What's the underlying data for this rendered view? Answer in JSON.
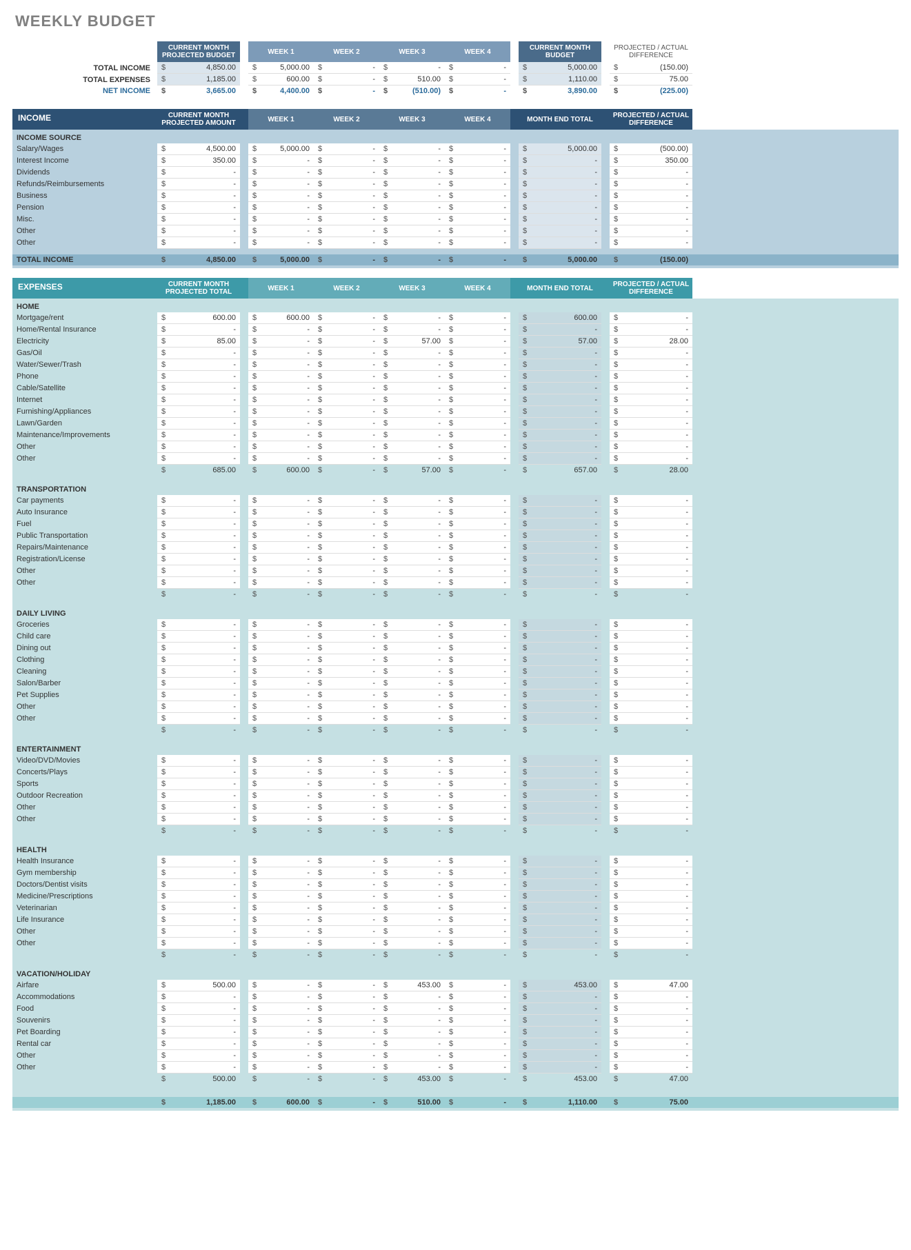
{
  "title": "WEEKLY BUDGET",
  "columns": {
    "projected": "CURRENT MONTH PROJECTED BUDGET",
    "projected_amount": "CURRENT MONTH PROJECTED AMOUNT",
    "projected_total": "CURRENT MONTH PROJECTED TOTAL",
    "week1": "WEEK 1",
    "week2": "WEEK 2",
    "week3": "WEEK 3",
    "week4": "WEEK 4",
    "month_budget": "CURRENT MONTH BUDGET",
    "month_end": "MONTH END TOTAL",
    "diff": "PROJECTED / ACTUAL DIFFERENCE"
  },
  "summary": {
    "labels": {
      "total_income": "TOTAL INCOME",
      "total_expenses": "TOTAL EXPENSES",
      "net_income": "NET INCOME"
    },
    "total_income": {
      "projected": "4,850.00",
      "w1": "5,000.00",
      "w2": "-",
      "w3": "-",
      "w4": "-",
      "month": "5,000.00",
      "diff": "(150.00)"
    },
    "total_expenses": {
      "projected": "1,185.00",
      "w1": "600.00",
      "w2": "-",
      "w3": "510.00",
      "w4": "-",
      "month": "1,110.00",
      "diff": "75.00"
    },
    "net_income": {
      "projected": "3,665.00",
      "w1": "4,400.00",
      "w2": "-",
      "w3": "(510.00)",
      "w4": "-",
      "month": "3,890.00",
      "diff": "(225.00)"
    }
  },
  "income": {
    "title": "INCOME",
    "source_label": "INCOME SOURCE",
    "rows": [
      {
        "label": "Salary/Wages",
        "projected": "4,500.00",
        "w1": "5,000.00",
        "w2": "-",
        "w3": "-",
        "w4": "-",
        "month": "5,000.00",
        "diff": "(500.00)"
      },
      {
        "label": "Interest Income",
        "projected": "350.00",
        "w1": "-",
        "w2": "-",
        "w3": "-",
        "w4": "-",
        "month": "-",
        "diff": "350.00"
      },
      {
        "label": "Dividends",
        "projected": "-",
        "w1": "-",
        "w2": "-",
        "w3": "-",
        "w4": "-",
        "month": "-",
        "diff": "-"
      },
      {
        "label": "Refunds/Reimbursements",
        "projected": "-",
        "w1": "-",
        "w2": "-",
        "w3": "-",
        "w4": "-",
        "month": "-",
        "diff": "-"
      },
      {
        "label": "Business",
        "projected": "-",
        "w1": "-",
        "w2": "-",
        "w3": "-",
        "w4": "-",
        "month": "-",
        "diff": "-"
      },
      {
        "label": "Pension",
        "projected": "-",
        "w1": "-",
        "w2": "-",
        "w3": "-",
        "w4": "-",
        "month": "-",
        "diff": "-"
      },
      {
        "label": "Misc.",
        "projected": "-",
        "w1": "-",
        "w2": "-",
        "w3": "-",
        "w4": "-",
        "month": "-",
        "diff": "-"
      },
      {
        "label": "Other",
        "projected": "-",
        "w1": "-",
        "w2": "-",
        "w3": "-",
        "w4": "-",
        "month": "-",
        "diff": "-"
      },
      {
        "label": "Other",
        "projected": "-",
        "w1": "-",
        "w2": "-",
        "w3": "-",
        "w4": "-",
        "month": "-",
        "diff": "-"
      }
    ],
    "total": {
      "label": "TOTAL INCOME",
      "projected": "4,850.00",
      "w1": "5,000.00",
      "w2": "-",
      "w3": "-",
      "w4": "-",
      "month": "5,000.00",
      "diff": "(150.00)"
    }
  },
  "expenses": {
    "title": "EXPENSES",
    "categories": [
      {
        "name": "HOME",
        "rows": [
          {
            "label": "Mortgage/rent",
            "projected": "600.00",
            "w1": "600.00",
            "w2": "-",
            "w3": "-",
            "w4": "-",
            "month": "600.00",
            "diff": "-"
          },
          {
            "label": "Home/Rental Insurance",
            "projected": "-",
            "w1": "-",
            "w2": "-",
            "w3": "-",
            "w4": "-",
            "month": "-",
            "diff": "-"
          },
          {
            "label": "Electricity",
            "projected": "85.00",
            "w1": "-",
            "w2": "-",
            "w3": "57.00",
            "w4": "-",
            "month": "57.00",
            "diff": "28.00"
          },
          {
            "label": "Gas/Oil",
            "projected": "-",
            "w1": "-",
            "w2": "-",
            "w3": "-",
            "w4": "-",
            "month": "-",
            "diff": "-"
          },
          {
            "label": "Water/Sewer/Trash",
            "projected": "-",
            "w1": "-",
            "w2": "-",
            "w3": "-",
            "w4": "-",
            "month": "-",
            "diff": "-"
          },
          {
            "label": "Phone",
            "projected": "-",
            "w1": "-",
            "w2": "-",
            "w3": "-",
            "w4": "-",
            "month": "-",
            "diff": "-"
          },
          {
            "label": "Cable/Satellite",
            "projected": "-",
            "w1": "-",
            "w2": "-",
            "w3": "-",
            "w4": "-",
            "month": "-",
            "diff": "-"
          },
          {
            "label": "Internet",
            "projected": "-",
            "w1": "-",
            "w2": "-",
            "w3": "-",
            "w4": "-",
            "month": "-",
            "diff": "-"
          },
          {
            "label": "Furnishing/Appliances",
            "projected": "-",
            "w1": "-",
            "w2": "-",
            "w3": "-",
            "w4": "-",
            "month": "-",
            "diff": "-"
          },
          {
            "label": "Lawn/Garden",
            "projected": "-",
            "w1": "-",
            "w2": "-",
            "w3": "-",
            "w4": "-",
            "month": "-",
            "diff": "-"
          },
          {
            "label": "Maintenance/Improvements",
            "projected": "-",
            "w1": "-",
            "w2": "-",
            "w3": "-",
            "w4": "-",
            "month": "-",
            "diff": "-"
          },
          {
            "label": "Other",
            "projected": "-",
            "w1": "-",
            "w2": "-",
            "w3": "-",
            "w4": "-",
            "month": "-",
            "diff": "-"
          },
          {
            "label": "Other",
            "projected": "-",
            "w1": "-",
            "w2": "-",
            "w3": "-",
            "w4": "-",
            "month": "-",
            "diff": "-"
          }
        ],
        "subtotal": {
          "projected": "685.00",
          "w1": "600.00",
          "w2": "-",
          "w3": "57.00",
          "w4": "-",
          "month": "657.00",
          "diff": "28.00"
        }
      },
      {
        "name": "TRANSPORTATION",
        "rows": [
          {
            "label": "Car payments",
            "projected": "-",
            "w1": "-",
            "w2": "-",
            "w3": "-",
            "w4": "-",
            "month": "-",
            "diff": "-"
          },
          {
            "label": "Auto Insurance",
            "projected": "-",
            "w1": "-",
            "w2": "-",
            "w3": "-",
            "w4": "-",
            "month": "-",
            "diff": "-"
          },
          {
            "label": "Fuel",
            "projected": "-",
            "w1": "-",
            "w2": "-",
            "w3": "-",
            "w4": "-",
            "month": "-",
            "diff": "-"
          },
          {
            "label": "Public Transportation",
            "projected": "-",
            "w1": "-",
            "w2": "-",
            "w3": "-",
            "w4": "-",
            "month": "-",
            "diff": "-"
          },
          {
            "label": "Repairs/Maintenance",
            "projected": "-",
            "w1": "-",
            "w2": "-",
            "w3": "-",
            "w4": "-",
            "month": "-",
            "diff": "-"
          },
          {
            "label": "Registration/License",
            "projected": "-",
            "w1": "-",
            "w2": "-",
            "w3": "-",
            "w4": "-",
            "month": "-",
            "diff": "-"
          },
          {
            "label": "Other",
            "projected": "-",
            "w1": "-",
            "w2": "-",
            "w3": "-",
            "w4": "-",
            "month": "-",
            "diff": "-"
          },
          {
            "label": "Other",
            "projected": "-",
            "w1": "-",
            "w2": "-",
            "w3": "-",
            "w4": "-",
            "month": "-",
            "diff": "-"
          }
        ],
        "subtotal": {
          "projected": "-",
          "w1": "-",
          "w2": "-",
          "w3": "-",
          "w4": "-",
          "month": "-",
          "diff": "-"
        }
      },
      {
        "name": "DAILY LIVING",
        "rows": [
          {
            "label": "Groceries",
            "projected": "-",
            "w1": "-",
            "w2": "-",
            "w3": "-",
            "w4": "-",
            "month": "-",
            "diff": "-"
          },
          {
            "label": "Child care",
            "projected": "-",
            "w1": "-",
            "w2": "-",
            "w3": "-",
            "w4": "-",
            "month": "-",
            "diff": "-"
          },
          {
            "label": "Dining out",
            "projected": "-",
            "w1": "-",
            "w2": "-",
            "w3": "-",
            "w4": "-",
            "month": "-",
            "diff": "-"
          },
          {
            "label": "Clothing",
            "projected": "-",
            "w1": "-",
            "w2": "-",
            "w3": "-",
            "w4": "-",
            "month": "-",
            "diff": "-"
          },
          {
            "label": "Cleaning",
            "projected": "-",
            "w1": "-",
            "w2": "-",
            "w3": "-",
            "w4": "-",
            "month": "-",
            "diff": "-"
          },
          {
            "label": "Salon/Barber",
            "projected": "-",
            "w1": "-",
            "w2": "-",
            "w3": "-",
            "w4": "-",
            "month": "-",
            "diff": "-"
          },
          {
            "label": "Pet Supplies",
            "projected": "-",
            "w1": "-",
            "w2": "-",
            "w3": "-",
            "w4": "-",
            "month": "-",
            "diff": "-"
          },
          {
            "label": "Other",
            "projected": "-",
            "w1": "-",
            "w2": "-",
            "w3": "-",
            "w4": "-",
            "month": "-",
            "diff": "-"
          },
          {
            "label": "Other",
            "projected": "-",
            "w1": "-",
            "w2": "-",
            "w3": "-",
            "w4": "-",
            "month": "-",
            "diff": "-"
          }
        ],
        "subtotal": {
          "projected": "-",
          "w1": "-",
          "w2": "-",
          "w3": "-",
          "w4": "-",
          "month": "-",
          "diff": "-"
        }
      },
      {
        "name": "ENTERTAINMENT",
        "rows": [
          {
            "label": "Video/DVD/Movies",
            "projected": "-",
            "w1": "-",
            "w2": "-",
            "w3": "-",
            "w4": "-",
            "month": "-",
            "diff": "-"
          },
          {
            "label": "Concerts/Plays",
            "projected": "-",
            "w1": "-",
            "w2": "-",
            "w3": "-",
            "w4": "-",
            "month": "-",
            "diff": "-"
          },
          {
            "label": "Sports",
            "projected": "-",
            "w1": "-",
            "w2": "-",
            "w3": "-",
            "w4": "-",
            "month": "-",
            "diff": "-"
          },
          {
            "label": "Outdoor Recreation",
            "projected": "-",
            "w1": "-",
            "w2": "-",
            "w3": "-",
            "w4": "-",
            "month": "-",
            "diff": "-"
          },
          {
            "label": "Other",
            "projected": "-",
            "w1": "-",
            "w2": "-",
            "w3": "-",
            "w4": "-",
            "month": "-",
            "diff": "-"
          },
          {
            "label": "Other",
            "projected": "-",
            "w1": "-",
            "w2": "-",
            "w3": "-",
            "w4": "-",
            "month": "-",
            "diff": "-"
          }
        ],
        "subtotal": {
          "projected": "-",
          "w1": "-",
          "w2": "-",
          "w3": "-",
          "w4": "-",
          "month": "-",
          "diff": "-"
        }
      },
      {
        "name": "HEALTH",
        "rows": [
          {
            "label": "Health Insurance",
            "projected": "-",
            "w1": "-",
            "w2": "-",
            "w3": "-",
            "w4": "-",
            "month": "-",
            "diff": "-"
          },
          {
            "label": "Gym membership",
            "projected": "-",
            "w1": "-",
            "w2": "-",
            "w3": "-",
            "w4": "-",
            "month": "-",
            "diff": "-"
          },
          {
            "label": "Doctors/Dentist visits",
            "projected": "-",
            "w1": "-",
            "w2": "-",
            "w3": "-",
            "w4": "-",
            "month": "-",
            "diff": "-"
          },
          {
            "label": "Medicine/Prescriptions",
            "projected": "-",
            "w1": "-",
            "w2": "-",
            "w3": "-",
            "w4": "-",
            "month": "-",
            "diff": "-"
          },
          {
            "label": "Veterinarian",
            "projected": "-",
            "w1": "-",
            "w2": "-",
            "w3": "-",
            "w4": "-",
            "month": "-",
            "diff": "-"
          },
          {
            "label": "Life Insurance",
            "projected": "-",
            "w1": "-",
            "w2": "-",
            "w3": "-",
            "w4": "-",
            "month": "-",
            "diff": "-"
          },
          {
            "label": "Other",
            "projected": "-",
            "w1": "-",
            "w2": "-",
            "w3": "-",
            "w4": "-",
            "month": "-",
            "diff": "-"
          },
          {
            "label": "Other",
            "projected": "-",
            "w1": "-",
            "w2": "-",
            "w3": "-",
            "w4": "-",
            "month": "-",
            "diff": "-"
          }
        ],
        "subtotal": {
          "projected": "-",
          "w1": "-",
          "w2": "-",
          "w3": "-",
          "w4": "-",
          "month": "-",
          "diff": "-"
        }
      },
      {
        "name": "VACATION/HOLIDAY",
        "rows": [
          {
            "label": "Airfare",
            "projected": "500.00",
            "w1": "-",
            "w2": "-",
            "w3": "453.00",
            "w4": "-",
            "month": "453.00",
            "diff": "47.00"
          },
          {
            "label": "Accommodations",
            "projected": "-",
            "w1": "-",
            "w2": "-",
            "w3": "-",
            "w4": "-",
            "month": "-",
            "diff": "-"
          },
          {
            "label": "Food",
            "projected": "-",
            "w1": "-",
            "w2": "-",
            "w3": "-",
            "w4": "-",
            "month": "-",
            "diff": "-"
          },
          {
            "label": "Souvenirs",
            "projected": "-",
            "w1": "-",
            "w2": "-",
            "w3": "-",
            "w4": "-",
            "month": "-",
            "diff": "-"
          },
          {
            "label": "Pet Boarding",
            "projected": "-",
            "w1": "-",
            "w2": "-",
            "w3": "-",
            "w4": "-",
            "month": "-",
            "diff": "-"
          },
          {
            "label": "Rental car",
            "projected": "-",
            "w1": "-",
            "w2": "-",
            "w3": "-",
            "w4": "-",
            "month": "-",
            "diff": "-"
          },
          {
            "label": "Other",
            "projected": "-",
            "w1": "-",
            "w2": "-",
            "w3": "-",
            "w4": "-",
            "month": "-",
            "diff": "-"
          },
          {
            "label": "Other",
            "projected": "-",
            "w1": "-",
            "w2": "-",
            "w3": "-",
            "w4": "-",
            "month": "-",
            "diff": "-"
          }
        ],
        "subtotal": {
          "projected": "500.00",
          "w1": "-",
          "w2": "-",
          "w3": "453.00",
          "w4": "-",
          "month": "453.00",
          "diff": "47.00"
        }
      }
    ],
    "grand_total": {
      "projected": "1,185.00",
      "w1": "600.00",
      "w2": "-",
      "w3": "510.00",
      "w4": "-",
      "month": "1,110.00",
      "diff": "75.00"
    }
  },
  "colors": {
    "title": "#808080",
    "summary_hdr_dark": "#4a6b8a",
    "summary_hdr_light": "#7d9bb8",
    "income_bar": "#2d5174",
    "income_body": "#b8d0de",
    "income_total_bg": "#8bb3c9",
    "expense_bar": "#3d9aa8",
    "expense_body": "#c5e0e3",
    "expense_total_bg": "#9ccfd4",
    "net_text": "#2a6a9a"
  }
}
